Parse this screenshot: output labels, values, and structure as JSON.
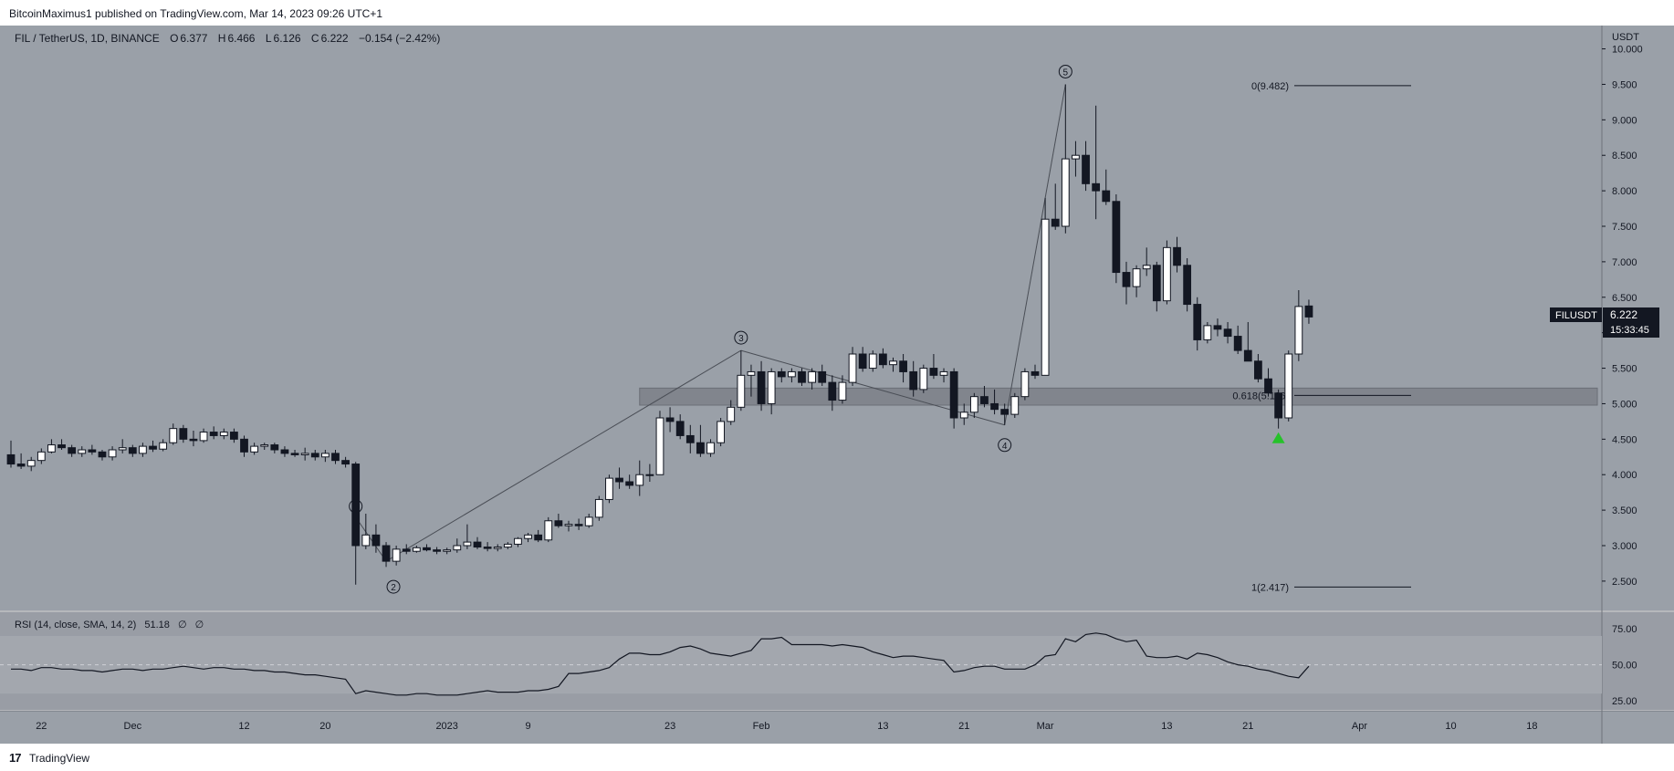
{
  "header": {
    "publisher_line": "BitcoinMaximus1 published on TradingView.com, Mar 14, 2023 09:26 UTC+1"
  },
  "footer": {
    "brand": "TradingView",
    "logo_glyph": "17"
  },
  "colors": {
    "background": "#999da5",
    "price_bg": "#9aa0a8",
    "bull_fill": "#ffffff",
    "bear_fill": "#131722",
    "wick": "#131722",
    "support_zone": "#7c8088",
    "green_marker": "#26c22a",
    "price_label_bg": "#131722"
  },
  "symbol_bar": {
    "symbol": "FIL / TetherUS, 1D, BINANCE",
    "o_label": "O",
    "o_value": "6.377",
    "h_label": "H",
    "h_value": "6.466",
    "l_label": "L",
    "l_value": "6.126",
    "c_label": "C",
    "c_value": "6.222",
    "change": "−0.154 (−2.42%)"
  },
  "price_axis": {
    "currency": "USDT",
    "ticks": [
      "10.000",
      "9.500",
      "9.000",
      "8.500",
      "8.000",
      "7.500",
      "7.000",
      "6.500",
      "6.000",
      "5.500",
      "5.000",
      "4.500",
      "4.000",
      "3.500",
      "3.000",
      "2.500"
    ]
  },
  "last_price": {
    "ticker": "FILUSDT",
    "price": "6.222",
    "countdown": "15:33:45"
  },
  "rsi": {
    "label": "RSI (14, close, SMA, 14, 2)",
    "value": "51.18",
    "na1": "∅",
    "na2": "∅",
    "ticks": [
      "75.00",
      "50.00",
      "25.00"
    ]
  },
  "x_axis": {
    "labels": [
      "22",
      "Dec",
      "12",
      "20",
      "2023",
      "9",
      "23",
      "Feb",
      "13",
      "21",
      "Mar",
      "13",
      "21",
      "Apr",
      "10",
      "18"
    ]
  },
  "fib_labels": {
    "top": "0(9.482)",
    "mid": "0.618(5.116)",
    "bottom": "1(2.417)"
  },
  "wave_labels": [
    "1",
    "2",
    "3",
    "4",
    "5"
  ],
  "chart_data": {
    "type": "candlestick",
    "title": "FIL / TetherUS, 1D, BINANCE",
    "y_range": [
      2.1,
      10.2
    ],
    "x_range": [
      "2022-11-19",
      "2023-04-24"
    ],
    "candles": [
      {
        "d": "2022-11-19",
        "o": 4.28,
        "h": 4.48,
        "l": 4.1,
        "c": 4.15
      },
      {
        "d": "2022-11-20",
        "o": 4.15,
        "h": 4.3,
        "l": 4.08,
        "c": 4.12
      },
      {
        "d": "2022-11-21",
        "o": 4.12,
        "h": 4.25,
        "l": 4.05,
        "c": 4.2
      },
      {
        "d": "2022-11-22",
        "o": 4.2,
        "h": 4.37,
        "l": 4.15,
        "c": 4.32
      },
      {
        "d": "2022-11-23",
        "o": 4.32,
        "h": 4.5,
        "l": 4.3,
        "c": 4.42
      },
      {
        "d": "2022-11-24",
        "o": 4.42,
        "h": 4.5,
        "l": 4.35,
        "c": 4.38
      },
      {
        "d": "2022-11-25",
        "o": 4.38,
        "h": 4.42,
        "l": 4.25,
        "c": 4.3
      },
      {
        "d": "2022-11-26",
        "o": 4.3,
        "h": 4.4,
        "l": 4.25,
        "c": 4.35
      },
      {
        "d": "2022-11-27",
        "o": 4.35,
        "h": 4.42,
        "l": 4.28,
        "c": 4.32
      },
      {
        "d": "2022-11-28",
        "o": 4.32,
        "h": 4.35,
        "l": 4.2,
        "c": 4.25
      },
      {
        "d": "2022-11-29",
        "o": 4.25,
        "h": 4.4,
        "l": 4.2,
        "c": 4.35
      },
      {
        "d": "2022-11-30",
        "o": 4.35,
        "h": 4.5,
        "l": 4.3,
        "c": 4.38
      },
      {
        "d": "2022-12-01",
        "o": 4.38,
        "h": 4.42,
        "l": 4.25,
        "c": 4.3
      },
      {
        "d": "2022-12-02",
        "o": 4.3,
        "h": 4.45,
        "l": 4.25,
        "c": 4.4
      },
      {
        "d": "2022-12-03",
        "o": 4.4,
        "h": 4.48,
        "l": 4.32,
        "c": 4.36
      },
      {
        "d": "2022-12-04",
        "o": 4.36,
        "h": 4.5,
        "l": 4.33,
        "c": 4.45
      },
      {
        "d": "2022-12-05",
        "o": 4.45,
        "h": 4.72,
        "l": 4.42,
        "c": 4.65
      },
      {
        "d": "2022-12-06",
        "o": 4.65,
        "h": 4.7,
        "l": 4.45,
        "c": 4.5
      },
      {
        "d": "2022-12-07",
        "o": 4.5,
        "h": 4.62,
        "l": 4.4,
        "c": 4.48
      },
      {
        "d": "2022-12-08",
        "o": 4.48,
        "h": 4.65,
        "l": 4.45,
        "c": 4.6
      },
      {
        "d": "2022-12-09",
        "o": 4.6,
        "h": 4.68,
        "l": 4.5,
        "c": 4.55
      },
      {
        "d": "2022-12-10",
        "o": 4.55,
        "h": 4.65,
        "l": 4.5,
        "c": 4.6
      },
      {
        "d": "2022-12-11",
        "o": 4.6,
        "h": 4.65,
        "l": 4.45,
        "c": 4.5
      },
      {
        "d": "2022-12-12",
        "o": 4.5,
        "h": 4.55,
        "l": 4.25,
        "c": 4.32
      },
      {
        "d": "2022-12-13",
        "o": 4.32,
        "h": 4.45,
        "l": 4.28,
        "c": 4.4
      },
      {
        "d": "2022-12-14",
        "o": 4.4,
        "h": 4.45,
        "l": 4.35,
        "c": 4.42
      },
      {
        "d": "2022-12-15",
        "o": 4.42,
        "h": 4.45,
        "l": 4.3,
        "c": 4.35
      },
      {
        "d": "2022-12-16",
        "o": 4.35,
        "h": 4.4,
        "l": 4.25,
        "c": 4.3
      },
      {
        "d": "2022-12-17",
        "o": 4.3,
        "h": 4.35,
        "l": 4.25,
        "c": 4.28
      },
      {
        "d": "2022-12-18",
        "o": 4.28,
        "h": 4.38,
        "l": 4.2,
        "c": 4.3
      },
      {
        "d": "2022-12-19",
        "o": 4.3,
        "h": 4.35,
        "l": 4.2,
        "c": 4.25
      },
      {
        "d": "2022-12-20",
        "o": 4.25,
        "h": 4.35,
        "l": 4.18,
        "c": 4.3
      },
      {
        "d": "2022-12-21",
        "o": 4.3,
        "h": 4.35,
        "l": 4.15,
        "c": 4.2
      },
      {
        "d": "2022-12-22",
        "o": 4.2,
        "h": 4.25,
        "l": 4.1,
        "c": 4.15
      },
      {
        "d": "2022-12-23",
        "o": 4.15,
        "h": 4.18,
        "l": 2.45,
        "c": 3.0
      },
      {
        "d": "2022-12-24",
        "o": 3.0,
        "h": 3.45,
        "l": 2.95,
        "c": 3.15
      },
      {
        "d": "2022-12-25",
        "o": 3.15,
        "h": 3.3,
        "l": 2.9,
        "c": 3.0
      },
      {
        "d": "2022-12-26",
        "o": 3.0,
        "h": 3.05,
        "l": 2.7,
        "c": 2.78
      },
      {
        "d": "2022-12-27",
        "o": 2.78,
        "h": 3.0,
        "l": 2.72,
        "c": 2.95
      },
      {
        "d": "2022-12-28",
        "o": 2.95,
        "h": 3.02,
        "l": 2.88,
        "c": 2.92
      },
      {
        "d": "2022-12-29",
        "o": 2.92,
        "h": 3.0,
        "l": 2.9,
        "c": 2.97
      },
      {
        "d": "2022-12-30",
        "o": 2.97,
        "h": 3.02,
        "l": 2.92,
        "c": 2.94
      },
      {
        "d": "2022-12-31",
        "o": 2.94,
        "h": 2.98,
        "l": 2.88,
        "c": 2.92
      },
      {
        "d": "2023-01-01",
        "o": 2.92,
        "h": 2.97,
        "l": 2.88,
        "c": 2.94
      },
      {
        "d": "2023-01-02",
        "o": 2.94,
        "h": 3.1,
        "l": 2.9,
        "c": 3.0
      },
      {
        "d": "2023-01-03",
        "o": 3.0,
        "h": 3.3,
        "l": 2.95,
        "c": 3.05
      },
      {
        "d": "2023-01-04",
        "o": 3.05,
        "h": 3.12,
        "l": 2.95,
        "c": 2.98
      },
      {
        "d": "2023-01-05",
        "o": 2.98,
        "h": 3.05,
        "l": 2.92,
        "c": 2.96
      },
      {
        "d": "2023-01-06",
        "o": 2.96,
        "h": 3.02,
        "l": 2.92,
        "c": 2.98
      },
      {
        "d": "2023-01-07",
        "o": 2.98,
        "h": 3.05,
        "l": 2.95,
        "c": 3.02
      },
      {
        "d": "2023-01-08",
        "o": 3.02,
        "h": 3.12,
        "l": 2.98,
        "c": 3.1
      },
      {
        "d": "2023-01-09",
        "o": 3.1,
        "h": 3.18,
        "l": 3.05,
        "c": 3.15
      },
      {
        "d": "2023-01-10",
        "o": 3.15,
        "h": 3.22,
        "l": 3.05,
        "c": 3.08
      },
      {
        "d": "2023-01-11",
        "o": 3.08,
        "h": 3.4,
        "l": 3.05,
        "c": 3.35
      },
      {
        "d": "2023-01-12",
        "o": 3.35,
        "h": 3.45,
        "l": 3.25,
        "c": 3.28
      },
      {
        "d": "2023-01-13",
        "o": 3.28,
        "h": 3.35,
        "l": 3.2,
        "c": 3.3
      },
      {
        "d": "2023-01-14",
        "o": 3.3,
        "h": 3.38,
        "l": 3.22,
        "c": 3.28
      },
      {
        "d": "2023-01-15",
        "o": 3.28,
        "h": 3.45,
        "l": 3.25,
        "c": 3.4
      },
      {
        "d": "2023-01-16",
        "o": 3.4,
        "h": 3.7,
        "l": 3.35,
        "c": 3.65
      },
      {
        "d": "2023-01-17",
        "o": 3.65,
        "h": 4.0,
        "l": 3.6,
        "c": 3.95
      },
      {
        "d": "2023-01-18",
        "o": 3.95,
        "h": 4.1,
        "l": 3.8,
        "c": 3.9
      },
      {
        "d": "2023-01-19",
        "o": 3.9,
        "h": 4.0,
        "l": 3.8,
        "c": 3.85
      },
      {
        "d": "2023-01-20",
        "o": 3.85,
        "h": 4.2,
        "l": 3.7,
        "c": 4.0
      },
      {
        "d": "2023-01-21",
        "o": 4.0,
        "h": 4.15,
        "l": 3.9,
        "c": 4.0
      },
      {
        "d": "2023-01-22",
        "o": 4.0,
        "h": 4.9,
        "l": 4.0,
        "c": 4.8
      },
      {
        "d": "2023-01-23",
        "o": 4.8,
        "h": 4.95,
        "l": 4.6,
        "c": 4.75
      },
      {
        "d": "2023-01-24",
        "o": 4.75,
        "h": 4.85,
        "l": 4.5,
        "c": 4.55
      },
      {
        "d": "2023-01-25",
        "o": 4.55,
        "h": 4.7,
        "l": 4.3,
        "c": 4.45
      },
      {
        "d": "2023-01-26",
        "o": 4.45,
        "h": 4.7,
        "l": 4.25,
        "c": 4.3
      },
      {
        "d": "2023-01-27",
        "o": 4.3,
        "h": 4.5,
        "l": 4.25,
        "c": 4.45
      },
      {
        "d": "2023-01-28",
        "o": 4.45,
        "h": 4.8,
        "l": 4.4,
        "c": 4.75
      },
      {
        "d": "2023-01-29",
        "o": 4.75,
        "h": 5.05,
        "l": 4.7,
        "c": 4.95
      },
      {
        "d": "2023-01-30",
        "o": 4.95,
        "h": 5.75,
        "l": 4.9,
        "c": 5.4
      },
      {
        "d": "2023-01-31",
        "o": 5.4,
        "h": 5.55,
        "l": 5.1,
        "c": 5.45
      },
      {
        "d": "2023-02-01",
        "o": 5.45,
        "h": 5.6,
        "l": 4.9,
        "c": 5.0
      },
      {
        "d": "2023-02-02",
        "o": 5.0,
        "h": 5.5,
        "l": 4.85,
        "c": 5.45
      },
      {
        "d": "2023-02-03",
        "o": 5.45,
        "h": 5.5,
        "l": 5.3,
        "c": 5.38
      },
      {
        "d": "2023-02-04",
        "o": 5.38,
        "h": 5.5,
        "l": 5.3,
        "c": 5.45
      },
      {
        "d": "2023-02-05",
        "o": 5.45,
        "h": 5.5,
        "l": 5.25,
        "c": 5.3
      },
      {
        "d": "2023-02-06",
        "o": 5.3,
        "h": 5.5,
        "l": 5.2,
        "c": 5.45
      },
      {
        "d": "2023-02-07",
        "o": 5.45,
        "h": 5.55,
        "l": 5.25,
        "c": 5.3
      },
      {
        "d": "2023-02-08",
        "o": 5.3,
        "h": 5.4,
        "l": 4.9,
        "c": 5.05
      },
      {
        "d": "2023-02-09",
        "o": 5.05,
        "h": 5.4,
        "l": 5.0,
        "c": 5.3
      },
      {
        "d": "2023-02-10",
        "o": 5.3,
        "h": 5.8,
        "l": 5.25,
        "c": 5.7
      },
      {
        "d": "2023-02-11",
        "o": 5.7,
        "h": 5.8,
        "l": 5.45,
        "c": 5.5
      },
      {
        "d": "2023-02-12",
        "o": 5.5,
        "h": 5.75,
        "l": 5.45,
        "c": 5.7
      },
      {
        "d": "2023-02-13",
        "o": 5.7,
        "h": 5.78,
        "l": 5.5,
        "c": 5.55
      },
      {
        "d": "2023-02-14",
        "o": 5.55,
        "h": 5.65,
        "l": 5.45,
        "c": 5.6
      },
      {
        "d": "2023-02-15",
        "o": 5.6,
        "h": 5.7,
        "l": 5.3,
        "c": 5.45
      },
      {
        "d": "2023-02-16",
        "o": 5.45,
        "h": 5.6,
        "l": 5.1,
        "c": 5.2
      },
      {
        "d": "2023-02-17",
        "o": 5.2,
        "h": 5.55,
        "l": 5.15,
        "c": 5.5
      },
      {
        "d": "2023-02-18",
        "o": 5.5,
        "h": 5.7,
        "l": 5.35,
        "c": 5.4
      },
      {
        "d": "2023-02-19",
        "o": 5.4,
        "h": 5.5,
        "l": 5.3,
        "c": 5.45
      },
      {
        "d": "2023-02-20",
        "o": 5.45,
        "h": 5.5,
        "l": 4.65,
        "c": 4.8
      },
      {
        "d": "2023-02-21",
        "o": 4.8,
        "h": 5.0,
        "l": 4.7,
        "c": 4.88
      },
      {
        "d": "2023-02-22",
        "o": 4.88,
        "h": 5.15,
        "l": 4.8,
        "c": 5.1
      },
      {
        "d": "2023-02-23",
        "o": 5.1,
        "h": 5.25,
        "l": 4.95,
        "c": 5.0
      },
      {
        "d": "2023-02-24",
        "o": 5.0,
        "h": 5.2,
        "l": 4.85,
        "c": 4.92
      },
      {
        "d": "2023-02-25",
        "o": 4.92,
        "h": 5.0,
        "l": 4.7,
        "c": 4.85
      },
      {
        "d": "2023-02-26",
        "o": 4.85,
        "h": 5.15,
        "l": 4.8,
        "c": 5.1
      },
      {
        "d": "2023-02-27",
        "o": 5.1,
        "h": 5.5,
        "l": 5.05,
        "c": 5.45
      },
      {
        "d": "2023-02-28",
        "o": 5.45,
        "h": 5.55,
        "l": 5.35,
        "c": 5.4
      },
      {
        "d": "2023-03-01",
        "o": 5.4,
        "h": 7.9,
        "l": 5.4,
        "c": 7.6
      },
      {
        "d": "2023-03-02",
        "o": 7.6,
        "h": 8.1,
        "l": 7.45,
        "c": 7.5
      },
      {
        "d": "2023-03-03",
        "o": 7.5,
        "h": 9.5,
        "l": 7.4,
        "c": 8.45
      },
      {
        "d": "2023-03-04",
        "o": 8.45,
        "h": 8.7,
        "l": 8.2,
        "c": 8.5
      },
      {
        "d": "2023-03-05",
        "o": 8.5,
        "h": 8.7,
        "l": 8.0,
        "c": 8.1
      },
      {
        "d": "2023-03-06",
        "o": 8.1,
        "h": 9.2,
        "l": 7.6,
        "c": 8.0
      },
      {
        "d": "2023-03-07",
        "o": 8.0,
        "h": 8.3,
        "l": 7.8,
        "c": 7.85
      },
      {
        "d": "2023-03-08",
        "o": 7.85,
        "h": 7.95,
        "l": 6.7,
        "c": 6.85
      },
      {
        "d": "2023-03-09",
        "o": 6.85,
        "h": 7.0,
        "l": 6.4,
        "c": 6.65
      },
      {
        "d": "2023-03-10",
        "o": 6.65,
        "h": 6.95,
        "l": 6.5,
        "c": 6.9
      },
      {
        "d": "2023-03-11",
        "o": 6.9,
        "h": 7.2,
        "l": 6.8,
        "c": 6.95
      },
      {
        "d": "2023-03-12",
        "o": 6.95,
        "h": 7.0,
        "l": 6.3,
        "c": 6.45
      },
      {
        "d": "2023-03-13",
        "o": 6.45,
        "h": 7.3,
        "l": 6.4,
        "c": 7.2
      },
      {
        "d": "2023-03-14",
        "o": 7.2,
        "h": 7.35,
        "l": 6.85,
        "c": 6.95
      },
      {
        "d": "2023-03-15",
        "o": 6.95,
        "h": 7.05,
        "l": 6.3,
        "c": 6.4
      },
      {
        "d": "2023-03-16",
        "o": 6.4,
        "h": 6.5,
        "l": 5.75,
        "c": 5.9
      },
      {
        "d": "2023-03-17",
        "o": 5.9,
        "h": 6.15,
        "l": 5.85,
        "c": 6.1
      },
      {
        "d": "2023-03-18",
        "o": 6.1,
        "h": 6.2,
        "l": 5.95,
        "c": 6.05
      },
      {
        "d": "2023-03-19",
        "o": 6.05,
        "h": 6.15,
        "l": 5.85,
        "c": 5.95
      },
      {
        "d": "2023-03-20",
        "o": 5.95,
        "h": 6.1,
        "l": 5.7,
        "c": 5.75
      },
      {
        "d": "2023-03-21",
        "o": 5.75,
        "h": 6.15,
        "l": 5.6,
        "c": 5.6
      },
      {
        "d": "2023-03-22",
        "o": 5.6,
        "h": 5.7,
        "l": 5.3,
        "c": 5.35
      },
      {
        "d": "2023-03-23",
        "o": 5.35,
        "h": 5.5,
        "l": 5.1,
        "c": 5.15
      },
      {
        "d": "2023-03-24",
        "o": 5.15,
        "h": 5.2,
        "l": 4.65,
        "c": 4.8
      },
      {
        "d": "2023-03-25",
        "o": 4.8,
        "h": 5.75,
        "l": 4.75,
        "c": 5.7
      },
      {
        "d": "2023-03-26",
        "o": 5.7,
        "h": 6.6,
        "l": 5.6,
        "c": 6.37
      },
      {
        "d": "2023-03-27",
        "o": 6.377,
        "h": 6.466,
        "l": 6.126,
        "c": 6.222
      }
    ],
    "rsi_series": [
      47,
      47,
      46,
      48,
      48,
      47,
      47,
      46,
      46,
      45,
      46,
      47,
      47,
      46,
      47,
      47,
      48,
      49,
      48,
      47,
      48,
      48,
      47,
      47,
      46,
      46,
      45,
      45,
      44,
      43,
      43,
      42,
      41,
      40,
      30,
      32,
      31,
      30,
      29,
      29,
      30,
      30,
      29,
      29,
      29,
      30,
      31,
      32,
      31,
      31,
      31,
      32,
      32,
      33,
      35,
      44,
      44,
      45,
      46,
      48,
      54,
      58,
      58,
      57,
      57,
      59,
      62,
      63,
      61,
      58,
      57,
      56,
      58,
      60,
      68,
      68,
      69,
      64,
      64,
      64,
      64,
      63,
      64,
      63,
      62,
      59,
      57,
      55,
      56,
      56,
      55,
      54,
      53,
      45,
      46,
      48,
      49,
      49,
      47,
      47,
      47,
      50,
      56,
      57,
      68,
      66,
      71,
      72,
      71,
      68,
      66,
      67,
      56,
      55,
      55,
      56,
      54,
      58,
      57,
      55,
      52,
      50,
      49,
      47,
      46,
      44,
      42,
      41,
      49,
      53,
      51
    ],
    "fib_levels": [
      {
        "ratio": 0,
        "price": 9.482
      },
      {
        "ratio": 0.618,
        "price": 5.116
      },
      {
        "ratio": 1,
        "price": 2.417
      }
    ],
    "support_zone": [
      4.98,
      5.22
    ],
    "wave_points": [
      {
        "label": "1",
        "d": "2022-12-23",
        "price": 3.4
      },
      {
        "label": "2",
        "d": "2022-12-26",
        "price": 2.78
      },
      {
        "label": "3",
        "d": "2023-01-30",
        "price": 5.75
      },
      {
        "label": "4",
        "d": "2023-02-25",
        "price": 4.7
      },
      {
        "label": "5",
        "d": "2023-03-03",
        "price": 9.5
      }
    ],
    "marker": {
      "d": "2023-03-24",
      "price": 4.52,
      "shape": "up-triangle"
    },
    "last_price": 6.222,
    "rsi_range": [
      20,
      82
    ],
    "rsi_band": [
      30,
      70
    ]
  }
}
